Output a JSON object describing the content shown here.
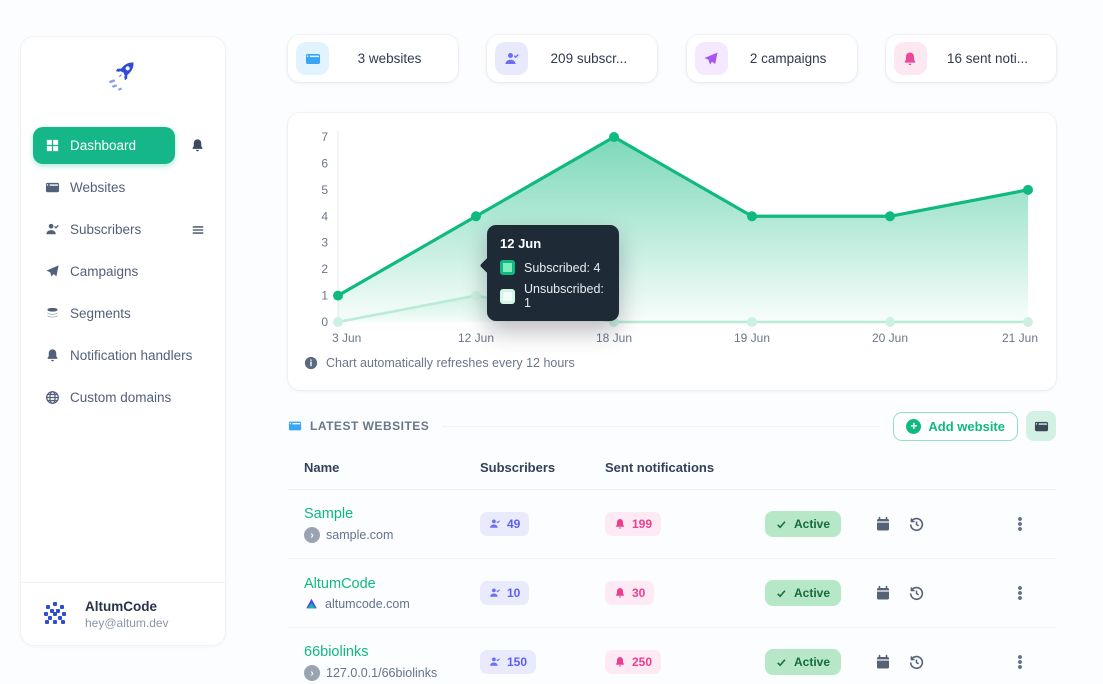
{
  "colors": {
    "accent_green": "#15b789",
    "chart_green": "#10b981",
    "chart_light_green": "#b9ecd6",
    "link_green": "#10b981",
    "tooltip_bg": "#1f2a37",
    "websites_blue": "#3aa5f5",
    "subscribers_purple": "#6d6ff3",
    "campaigns_violet": "#a855f7",
    "notifications_pink": "#ec4899",
    "active_badge_bg": "#b6e7c6",
    "active_badge_text": "#156a3e"
  },
  "sidebar": {
    "logo": "rocket-logo",
    "items": [
      {
        "label": "Dashboard",
        "icon": "grid-icon",
        "active": true,
        "trailing_icon": "bell-icon"
      },
      {
        "label": "Websites",
        "icon": "browser-icon",
        "active": false
      },
      {
        "label": "Subscribers",
        "icon": "user-check-icon",
        "active": false,
        "trailing_icon": "menu-icon"
      },
      {
        "label": "Campaigns",
        "icon": "paper-plane-icon",
        "active": false
      },
      {
        "label": "Segments",
        "icon": "layers-icon",
        "active": false
      },
      {
        "label": "Notification handlers",
        "icon": "bell-icon",
        "active": false
      },
      {
        "label": "Custom domains",
        "icon": "globe-icon",
        "active": false
      }
    ],
    "user": {
      "name": "AltumCode",
      "email": "hey@altum.dev"
    }
  },
  "stats": [
    {
      "label": "3 websites",
      "icon": "browser-icon",
      "icon_color": "#3aa5f5",
      "icon_bg": "#e1f3fe"
    },
    {
      "label": "209 subscr...",
      "icon": "user-check-icon",
      "icon_color": "#6d6ff3",
      "icon_bg": "#e8e9fd"
    },
    {
      "label": "2 campaigns",
      "icon": "paper-plane-icon",
      "icon_color": "#a855f7",
      "icon_bg": "#f4e9fe"
    },
    {
      "label": "16 sent noti...",
      "icon": "bell-icon",
      "icon_color": "#ec4899",
      "icon_bg": "#fde8f1"
    }
  ],
  "chart_data": {
    "type": "area",
    "title": "",
    "x": [
      "3 Jun",
      "12 Jun",
      "18 Jun",
      "19 Jun",
      "20 Jun",
      "21 Jun"
    ],
    "series": [
      {
        "name": "Subscribed",
        "values": [
          1,
          4,
          7,
          4,
          4,
          5
        ],
        "color": "#10b981"
      },
      {
        "name": "Unsubscribed",
        "values": [
          0,
          1,
          0,
          0,
          0,
          0
        ],
        "color": "#b9ecd6"
      }
    ],
    "ylim": [
      0,
      7
    ],
    "yticks": [
      0,
      1,
      2,
      3,
      4,
      5,
      6,
      7
    ],
    "grid": false,
    "legend_position": "none",
    "tooltip": {
      "title": "12 Jun",
      "rows": [
        {
          "text": "Subscribed: 4",
          "swatch": "#10b981"
        },
        {
          "text": "Unsubscribed: 1",
          "swatch": "#d3f6e6"
        }
      ]
    }
  },
  "chart_note": "Chart automatically refreshes every 12 hours",
  "websites": {
    "title": "LATEST WEBSITES",
    "add_button_label": "Add website",
    "table": {
      "headers": [
        "Name",
        "Subscribers",
        "Sent notifications"
      ],
      "rows": [
        {
          "name": "Sample",
          "domain": "sample.com",
          "subscribers": "49",
          "sent": "199",
          "status": "Active"
        },
        {
          "name": "AltumCode",
          "domain": "altumcode.com",
          "subscribers": "10",
          "sent": "30",
          "status": "Active"
        },
        {
          "name": "66biolinks",
          "domain": "127.0.0.1/66biolinks",
          "subscribers": "150",
          "sent": "250",
          "status": "Active"
        }
      ]
    }
  }
}
